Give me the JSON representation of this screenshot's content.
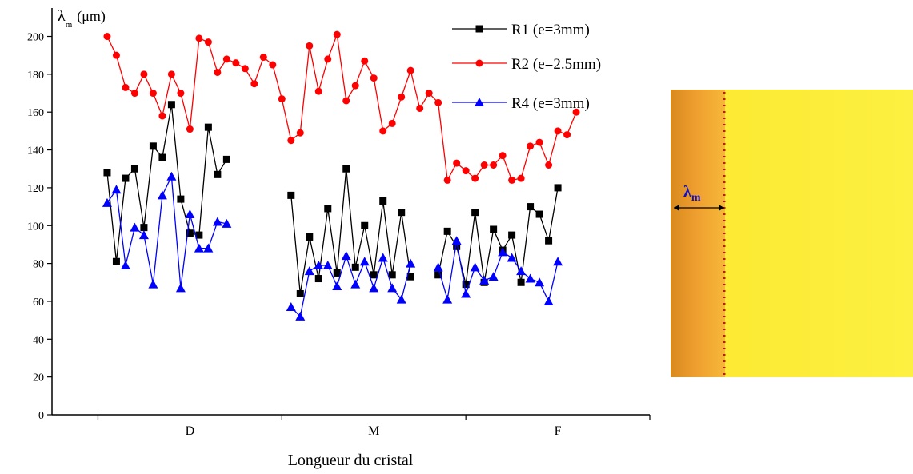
{
  "chart_data": {
    "type": "line",
    "ylabel_symbol": "λ",
    "ylabel_subscript": "m",
    "ylabel_unit": "(μm)",
    "xlabel": "Longueur du cristal",
    "xlim": [
      -5,
      60
    ],
    "xticks": [
      {
        "value": 10,
        "label": "D"
      },
      {
        "value": 30,
        "label": "M"
      },
      {
        "value": 50,
        "label": "F"
      }
    ],
    "x_minor_ticks": [
      0,
      20,
      40,
      60
    ],
    "ylim": [
      0,
      215
    ],
    "yticks": [
      0,
      20,
      40,
      60,
      80,
      100,
      120,
      140,
      160,
      180,
      200
    ],
    "legend": "top-right",
    "series": [
      {
        "name": "R1 (e=3mm)",
        "color": "#000000",
        "marker": "square",
        "x": [
          1,
          2,
          3,
          4,
          5,
          6,
          7,
          8,
          9,
          10,
          11,
          12,
          13,
          14,
          17,
          21,
          22,
          23,
          24,
          25,
          26,
          27,
          28,
          29,
          30,
          31,
          32,
          33,
          34,
          35.5,
          37,
          38,
          39,
          40,
          41,
          42,
          43,
          44,
          45,
          46,
          47,
          48,
          49,
          50
        ],
        "values": [
          128,
          81,
          125,
          130,
          99,
          142,
          136,
          164,
          114,
          96,
          95,
          152,
          127,
          135,
          null,
          116,
          64,
          94,
          72,
          109,
          75,
          130,
          78,
          100,
          74,
          113,
          74,
          107,
          73,
          null,
          74,
          97,
          89,
          69,
          107,
          70,
          98,
          87,
          95,
          70,
          110,
          106,
          92,
          120
        ]
      },
      {
        "name": "R2 (e=2.5mm)",
        "color": "#ff0000",
        "marker": "circle",
        "x": [
          1,
          2,
          3,
          4,
          5,
          6,
          7,
          8,
          9,
          10,
          11,
          12,
          13,
          14,
          15,
          16,
          17,
          18,
          19,
          20,
          21,
          22,
          23,
          24,
          25,
          26,
          27,
          28,
          29,
          30,
          31,
          32,
          33,
          34,
          35,
          36,
          37,
          38,
          39,
          40,
          41,
          42,
          43,
          44,
          45,
          46,
          47,
          48,
          49,
          50,
          51,
          52
        ],
        "values": [
          200,
          190,
          173,
          170,
          180,
          170,
          158,
          180,
          170,
          151,
          199,
          197,
          181,
          188,
          186,
          183,
          175,
          189,
          185,
          167,
          145,
          149,
          195,
          171,
          188,
          201,
          166,
          174,
          187,
          178,
          150,
          154,
          168,
          182,
          162,
          170,
          165,
          124,
          133,
          129,
          125,
          132,
          132,
          137,
          124,
          125,
          142,
          144,
          132,
          150,
          148,
          160
        ]
      },
      {
        "name": "R4 (e=3mm)",
        "color": "#0000ff",
        "marker": "triangle",
        "x": [
          1,
          2,
          3,
          4,
          5,
          6,
          7,
          8,
          9,
          10,
          11,
          12,
          13,
          14,
          17,
          21,
          22,
          23,
          24,
          25,
          26,
          27,
          28,
          29,
          30,
          31,
          32,
          33,
          34,
          35.5,
          37,
          38,
          39,
          40,
          41,
          42,
          43,
          44,
          45,
          46,
          47,
          48,
          49,
          50
        ],
        "values": [
          112,
          119,
          79,
          99,
          95,
          69,
          116,
          126,
          67,
          106,
          88,
          88,
          102,
          101,
          null,
          57,
          52,
          76,
          79,
          79,
          68,
          84,
          69,
          81,
          67,
          83,
          67,
          61,
          80,
          null,
          78,
          61,
          92,
          64,
          78,
          71,
          73,
          86,
          83,
          76,
          72,
          70,
          60,
          81
        ]
      }
    ],
    "inset_label_symbol": "λ",
    "inset_label_subscript": "m"
  }
}
